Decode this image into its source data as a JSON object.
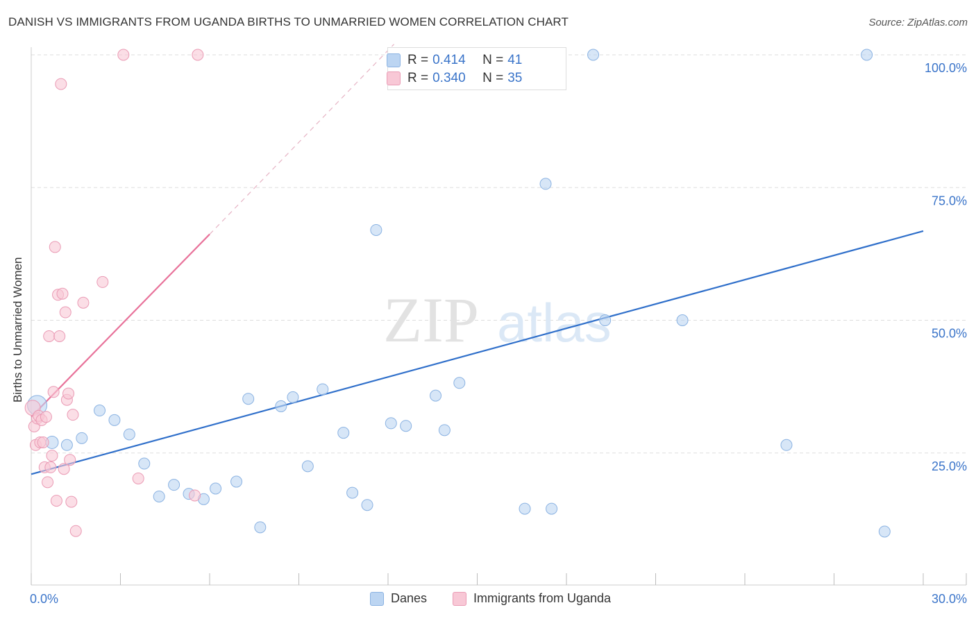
{
  "title": "DANISH VS IMMIGRANTS FROM UGANDA BIRTHS TO UNMARRIED WOMEN CORRELATION CHART",
  "source": "Source: ZipAtlas.com",
  "watermark": {
    "zip": "ZIP",
    "atlas": "atlas"
  },
  "colors": {
    "danes_fill": "#bcd5f2",
    "danes_stroke": "#8ab2e2",
    "danes_line": "#2f6fca",
    "uganda_fill": "#f8c8d6",
    "uganda_stroke": "#ea9ab4",
    "uganda_line": "#e8729a",
    "grid": "#dddddd",
    "tick_label": "#3a74c9"
  },
  "legend_stats": {
    "rows": [
      {
        "r_label": "R = ",
        "r_value": "0.414",
        "n_label": "N = ",
        "n_value": "41"
      },
      {
        "r_label": "R = ",
        "r_value": "0.340",
        "n_label": "N = ",
        "n_value": "35"
      }
    ]
  },
  "legend_bottom": {
    "danes": "Danes",
    "uganda": "Immigrants from Uganda"
  },
  "chart_data": {
    "type": "scatter",
    "title": "DANISH VS IMMIGRANTS FROM UGANDA BIRTHS TO UNMARRIED WOMEN CORRELATION CHART",
    "xlabel": "",
    "ylabel": "Births to Unmarried Women",
    "xlim": [
      0,
      30
    ],
    "ylim": [
      0,
      102
    ],
    "x_tick_labels": [
      "0.0%",
      "30.0%"
    ],
    "y_ticks": [
      25,
      50,
      75,
      100
    ],
    "y_tick_labels": [
      "25.0%",
      "50.0%",
      "75.0%",
      "100.0%"
    ],
    "grid": true,
    "legend_position": "top-center",
    "series": [
      {
        "name": "Danes",
        "R": 0.414,
        "N": 41,
        "trend": {
          "x0": 0,
          "y0": 21.0,
          "x1": 30,
          "y1": 66.8
        },
        "points": [
          [
            0.2,
            34.0,
            26
          ],
          [
            0.7,
            27.0,
            16
          ],
          [
            1.2,
            26.5,
            14
          ],
          [
            1.7,
            27.8,
            14
          ],
          [
            2.3,
            33.0,
            14
          ],
          [
            2.8,
            31.2,
            14
          ],
          [
            3.3,
            28.5,
            14
          ],
          [
            3.8,
            23.0,
            14
          ],
          [
            4.3,
            16.8,
            14
          ],
          [
            4.8,
            19.0,
            14
          ],
          [
            5.3,
            17.3,
            14
          ],
          [
            5.8,
            16.3,
            14
          ],
          [
            6.2,
            18.3,
            14
          ],
          [
            6.9,
            19.6,
            14
          ],
          [
            7.3,
            35.2,
            14
          ],
          [
            7.7,
            11.0,
            14
          ],
          [
            8.4,
            33.8,
            14
          ],
          [
            8.8,
            35.5,
            14
          ],
          [
            9.3,
            22.5,
            14
          ],
          [
            9.8,
            37.0,
            14
          ],
          [
            10.5,
            28.8,
            14
          ],
          [
            10.8,
            17.5,
            14
          ],
          [
            11.3,
            15.2,
            14
          ],
          [
            11.6,
            67.0,
            14
          ],
          [
            12.1,
            30.6,
            14
          ],
          [
            12.6,
            30.1,
            14
          ],
          [
            13.6,
            35.8,
            14
          ],
          [
            13.9,
            29.3,
            14
          ],
          [
            14.4,
            38.2,
            14
          ],
          [
            14.9,
            100.0,
            14
          ],
          [
            15.6,
            100.0,
            14
          ],
          [
            16.6,
            14.5,
            14
          ],
          [
            17.3,
            75.7,
            14
          ],
          [
            17.5,
            14.5,
            14
          ],
          [
            18.9,
            100.0,
            14
          ],
          [
            19.3,
            50.0,
            14
          ],
          [
            21.9,
            50.0,
            14
          ],
          [
            25.4,
            26.5,
            14
          ],
          [
            28.1,
            100.0,
            14
          ],
          [
            28.7,
            10.2,
            14
          ],
          [
            14.6,
            100.0,
            14
          ]
        ]
      },
      {
        "name": "Immigrants from Uganda",
        "R": 0.34,
        "N": 35,
        "trend": {
          "x0": 0,
          "y0": 31.8,
          "x1": 6.0,
          "y1": 66.2,
          "dash_x1": 12.2,
          "dash_y1": 102
        },
        "points": [
          [
            0.05,
            33.5,
            20
          ],
          [
            0.1,
            30.0,
            14
          ],
          [
            0.15,
            26.5,
            14
          ],
          [
            0.2,
            31.5,
            14
          ],
          [
            0.25,
            32.0,
            14
          ],
          [
            0.3,
            27.0,
            14
          ],
          [
            0.35,
            31.2,
            14
          ],
          [
            0.4,
            27.0,
            14
          ],
          [
            0.45,
            22.3,
            14
          ],
          [
            0.5,
            31.8,
            14
          ],
          [
            0.55,
            19.5,
            14
          ],
          [
            0.6,
            47.0,
            14
          ],
          [
            0.65,
            22.3,
            14
          ],
          [
            0.7,
            24.5,
            14
          ],
          [
            0.75,
            36.5,
            14
          ],
          [
            0.8,
            63.8,
            14
          ],
          [
            0.85,
            16.0,
            14
          ],
          [
            0.9,
            54.8,
            14
          ],
          [
            0.95,
            47.0,
            14
          ],
          [
            1.0,
            94.5,
            14
          ],
          [
            1.05,
            55.0,
            14
          ],
          [
            1.1,
            22.0,
            14
          ],
          [
            1.15,
            51.5,
            14
          ],
          [
            1.2,
            35.0,
            14
          ],
          [
            1.25,
            36.2,
            14
          ],
          [
            1.3,
            23.7,
            14
          ],
          [
            1.35,
            15.8,
            14
          ],
          [
            1.4,
            32.2,
            14
          ],
          [
            1.5,
            10.3,
            14
          ],
          [
            1.75,
            53.3,
            14
          ],
          [
            2.4,
            57.2,
            14
          ],
          [
            3.1,
            100.0,
            14
          ],
          [
            3.6,
            20.2,
            14
          ],
          [
            5.6,
            100.0,
            14
          ],
          [
            5.5,
            17.0,
            14
          ]
        ]
      }
    ]
  }
}
